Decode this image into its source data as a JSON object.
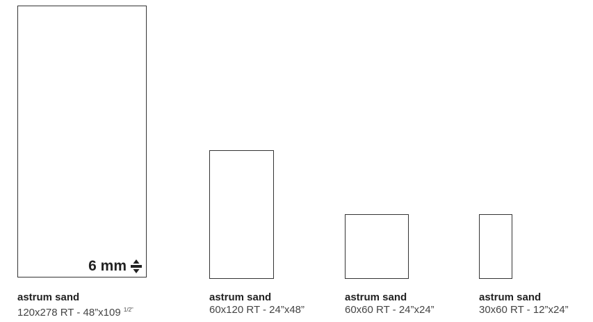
{
  "thickness_label": "6 mm",
  "tiles": [
    {
      "name": "astrum sand",
      "size": "120x278 RT - 48”x109 ",
      "size_fraction": "1/2”"
    },
    {
      "name": "astrum sand",
      "size": "60x120 RT - 24”x48”"
    },
    {
      "name": "astrum sand",
      "size": "60x60 RT - 24”x24”"
    },
    {
      "name": "astrum sand",
      "size": "30x60 RT - 12”x24”"
    }
  ],
  "icons": [
    "thickness-arrows-icon"
  ],
  "colors": {
    "outline": "#333333",
    "text": "#222222"
  }
}
